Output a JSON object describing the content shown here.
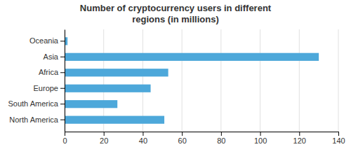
{
  "chart_data": {
    "type": "bar",
    "orientation": "horizontal",
    "title": "Number of cryptocurrency users in different\nregions (in millions)",
    "categories": [
      "North America",
      "South America",
      "Europe",
      "Africa",
      "Asia",
      "Oceania"
    ],
    "values": [
      51,
      27,
      44,
      53,
      130,
      1.5
    ],
    "color": "#4da8da",
    "xlim": [
      0,
      140
    ],
    "xticks": [
      0,
      20,
      40,
      60,
      80,
      100,
      120,
      140
    ],
    "grid": true
  }
}
